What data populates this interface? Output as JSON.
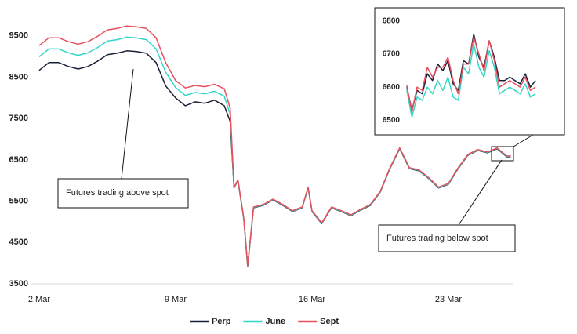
{
  "chart_data": [
    {
      "type": "line",
      "x": [
        2,
        2.5,
        3,
        3.5,
        4,
        4.5,
        5,
        5.5,
        6,
        6.5,
        7,
        7.5,
        8,
        8.5,
        9,
        9.5,
        10,
        10.5,
        11,
        11.5,
        11.8,
        12,
        12.2,
        12.5,
        12.7,
        13,
        13.5,
        14,
        14.5,
        15,
        15.5,
        15.8,
        16,
        16.5,
        17,
        17.5,
        18,
        18.5,
        19,
        19.5,
        20,
        20.5,
        21,
        21.5,
        22,
        22.5,
        23,
        23.5,
        24,
        24.5,
        25,
        25.5,
        26,
        26.2
      ],
      "series": [
        {
          "name": "Perp",
          "color": "#1a1f3a",
          "values": [
            8665,
            8855,
            8855,
            8760,
            8700,
            8760,
            8890,
            9045,
            9080,
            9140,
            9120,
            9080,
            8855,
            8285,
            8000,
            7810,
            7905,
            7870,
            7945,
            7810,
            7430,
            5820,
            6000,
            5060,
            3920,
            5340,
            5400,
            5530,
            5400,
            5250,
            5340,
            5820,
            5250,
            4960,
            5340,
            5250,
            5150,
            5285,
            5400,
            5720,
            6290,
            6770,
            6290,
            6235,
            6045,
            5820,
            5910,
            6290,
            6610,
            6730,
            6670,
            6770,
            6575,
            6575
          ]
        },
        {
          "name": "June",
          "color": "#33d6c8",
          "values": [
            8995,
            9185,
            9185,
            9090,
            9030,
            9090,
            9220,
            9375,
            9410,
            9470,
            9450,
            9410,
            9185,
            8615,
            8250,
            8060,
            8130,
            8100,
            8160,
            8040,
            7600,
            5830,
            6010,
            5070,
            3930,
            5350,
            5410,
            5540,
            5410,
            5260,
            5350,
            5830,
            5260,
            4970,
            5350,
            5260,
            5160,
            5295,
            5410,
            5730,
            6300,
            6780,
            6300,
            6245,
            6055,
            5830,
            5920,
            6300,
            6620,
            6740,
            6680,
            6780,
            6585,
            6585
          ]
        },
        {
          "name": "Sept",
          "color": "#e8505b",
          "values": [
            9265,
            9455,
            9455,
            9360,
            9300,
            9360,
            9490,
            9645,
            9680,
            9740,
            9720,
            9680,
            9455,
            8850,
            8420,
            8240,
            8300,
            8270,
            8330,
            8220,
            7750,
            5840,
            6020,
            5080,
            3940,
            5360,
            5420,
            5550,
            5420,
            5270,
            5360,
            5840,
            5270,
            4980,
            5360,
            5270,
            5170,
            5305,
            5420,
            5740,
            6310,
            6790,
            6310,
            6255,
            6065,
            5840,
            5930,
            6310,
            6630,
            6750,
            6690,
            6790,
            6595,
            6595
          ]
        }
      ],
      "xlim": [
        1.6,
        26.34
      ],
      "xticks": [
        {
          "value": 2,
          "label": "2 Mar"
        },
        {
          "value": 9,
          "label": "9 Mar"
        },
        {
          "value": 16,
          "label": "16 Mar"
        },
        {
          "value": 23,
          "label": "23 Mar"
        }
      ],
      "ylim": [
        3500,
        9800
      ],
      "yticks": [
        3500,
        4500,
        5500,
        6500,
        7500,
        8500,
        9500
      ],
      "annotations": [
        "Futures trading above spot",
        "Futures trading below spot"
      ],
      "legend": "bottom"
    },
    {
      "type": "line",
      "x": [
        25.65,
        25.67,
        25.69,
        25.71,
        25.73,
        25.75,
        25.77,
        25.79,
        25.81,
        25.83,
        25.85,
        25.87,
        25.89,
        25.91,
        25.93,
        25.95,
        25.97,
        25.99,
        26.01,
        26.03,
        26.05,
        26.07,
        26.09,
        26.11,
        26.13,
        26.15
      ],
      "series": [
        {
          "name": "Perp",
          "color": "#1a1f3a",
          "values": [
            6600,
            6530,
            6590,
            6580,
            6640,
            6620,
            6670,
            6650,
            6680,
            6610,
            6590,
            6680,
            6670,
            6760,
            6690,
            6660,
            6740,
            6690,
            6620,
            6620,
            6630,
            6620,
            6610,
            6640,
            6600,
            6620
          ]
        },
        {
          "name": "June",
          "color": "#33d6c8",
          "values": [
            6590,
            6510,
            6570,
            6560,
            6600,
            6580,
            6620,
            6590,
            6630,
            6570,
            6560,
            6660,
            6640,
            6730,
            6660,
            6630,
            6710,
            6660,
            6580,
            6590,
            6600,
            6590,
            6580,
            6610,
            6570,
            6580
          ]
        },
        {
          "name": "Sept",
          "color": "#e8505b",
          "values": [
            6605,
            6525,
            6600,
            6590,
            6660,
            6630,
            6660,
            6660,
            6690,
            6620,
            6580,
            6670,
            6670,
            6750,
            6700,
            6650,
            6740,
            6680,
            6600,
            6610,
            6620,
            6610,
            6600,
            6630,
            6590,
            6600
          ]
        }
      ],
      "xlim": [
        25.55,
        26.25
      ],
      "ylim": [
        6470,
        6830
      ],
      "yticks": [
        6500,
        6600,
        6700,
        6800
      ]
    }
  ]
}
